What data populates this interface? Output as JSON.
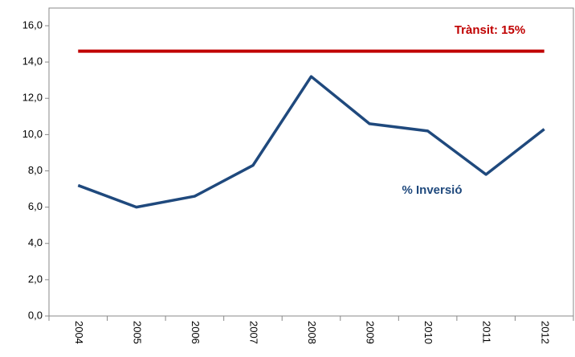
{
  "chart_data": {
    "type": "line",
    "categories": [
      "2004",
      "2005",
      "2006",
      "2007",
      "2008",
      "2009",
      "2010",
      "2011",
      "2012"
    ],
    "series": [
      {
        "name": "Trànsit: 15%",
        "color": "#c00000",
        "values": [
          14.6,
          14.6,
          14.6,
          14.6,
          14.6,
          14.6,
          14.6,
          14.6,
          14.6
        ]
      },
      {
        "name": "% Inversió",
        "color": "#1f497d",
        "values": [
          7.2,
          6.0,
          6.6,
          8.3,
          13.2,
          10.6,
          10.2,
          7.8,
          10.3
        ]
      }
    ],
    "ylim": [
      0,
      16
    ],
    "yticks": [
      {
        "value": 0,
        "label": "0,0"
      },
      {
        "value": 2,
        "label": "2,0"
      },
      {
        "value": 4,
        "label": "4,0"
      },
      {
        "value": 6,
        "label": "6,0"
      },
      {
        "value": 8,
        "label": "8,0"
      },
      {
        "value": 10,
        "label": "10,0"
      },
      {
        "value": 12,
        "label": "12,0"
      },
      {
        "value": 14,
        "label": "14,0"
      },
      {
        "value": 16,
        "label": "16,0"
      }
    ]
  }
}
